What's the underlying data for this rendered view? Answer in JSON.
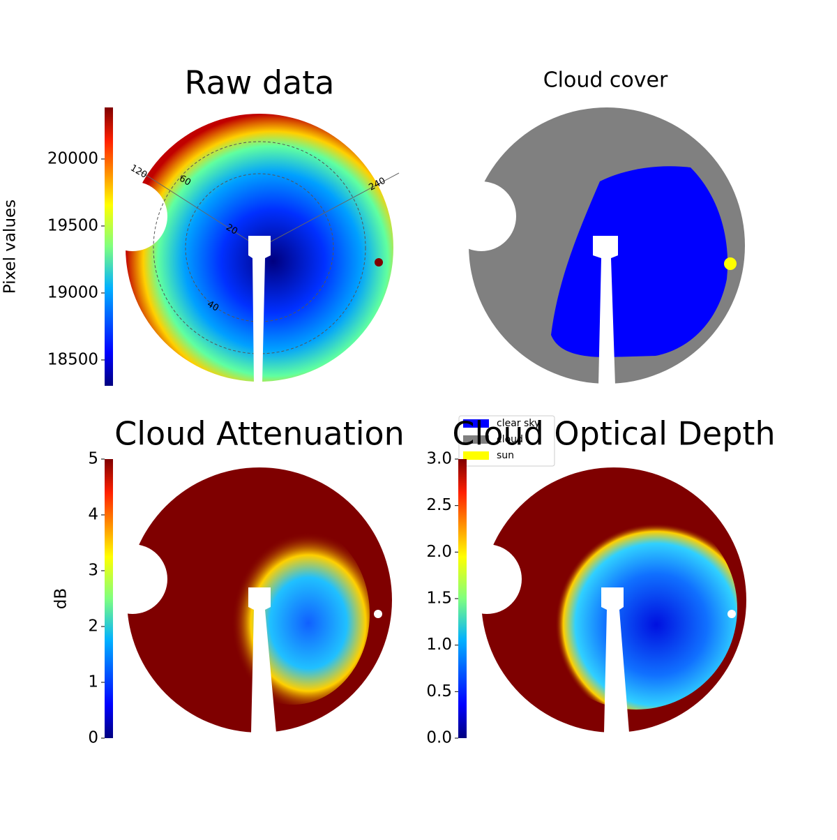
{
  "chart_data": [
    {
      "type": "image",
      "title": "Raw data",
      "colorbar": {
        "label": "Pixel values",
        "lim": [
          18307,
          20385
        ],
        "ticks": [
          18500,
          19000,
          19500,
          20000
        ]
      },
      "annotations": [
        "120",
        "60",
        "240",
        "20",
        "40"
      ]
    },
    {
      "type": "image",
      "title": "Cloud cover",
      "legend": [
        {
          "name": "clear sky",
          "color": "#0000ff"
        },
        {
          "name": "cloud",
          "color": "#808080"
        },
        {
          "name": "sun",
          "color": "#ffff00"
        }
      ]
    },
    {
      "type": "image",
      "title": "Cloud Attenuation",
      "colorbar": {
        "label": "dB",
        "lim": [
          0,
          5
        ],
        "ticks": [
          0,
          1,
          2,
          3,
          4,
          5
        ]
      }
    },
    {
      "type": "image",
      "title": "Cloud Optical Depth",
      "colorbar": {
        "lim": [
          0,
          3
        ],
        "ticks": [
          {
            "value": 0,
            "label": "0.0"
          },
          0.5,
          {
            "value": 1,
            "label": "1.0"
          },
          1.5,
          {
            "value": 2,
            "label": "2.0"
          },
          2.5,
          {
            "value": 3,
            "label": "3.0"
          }
        ]
      }
    }
  ]
}
